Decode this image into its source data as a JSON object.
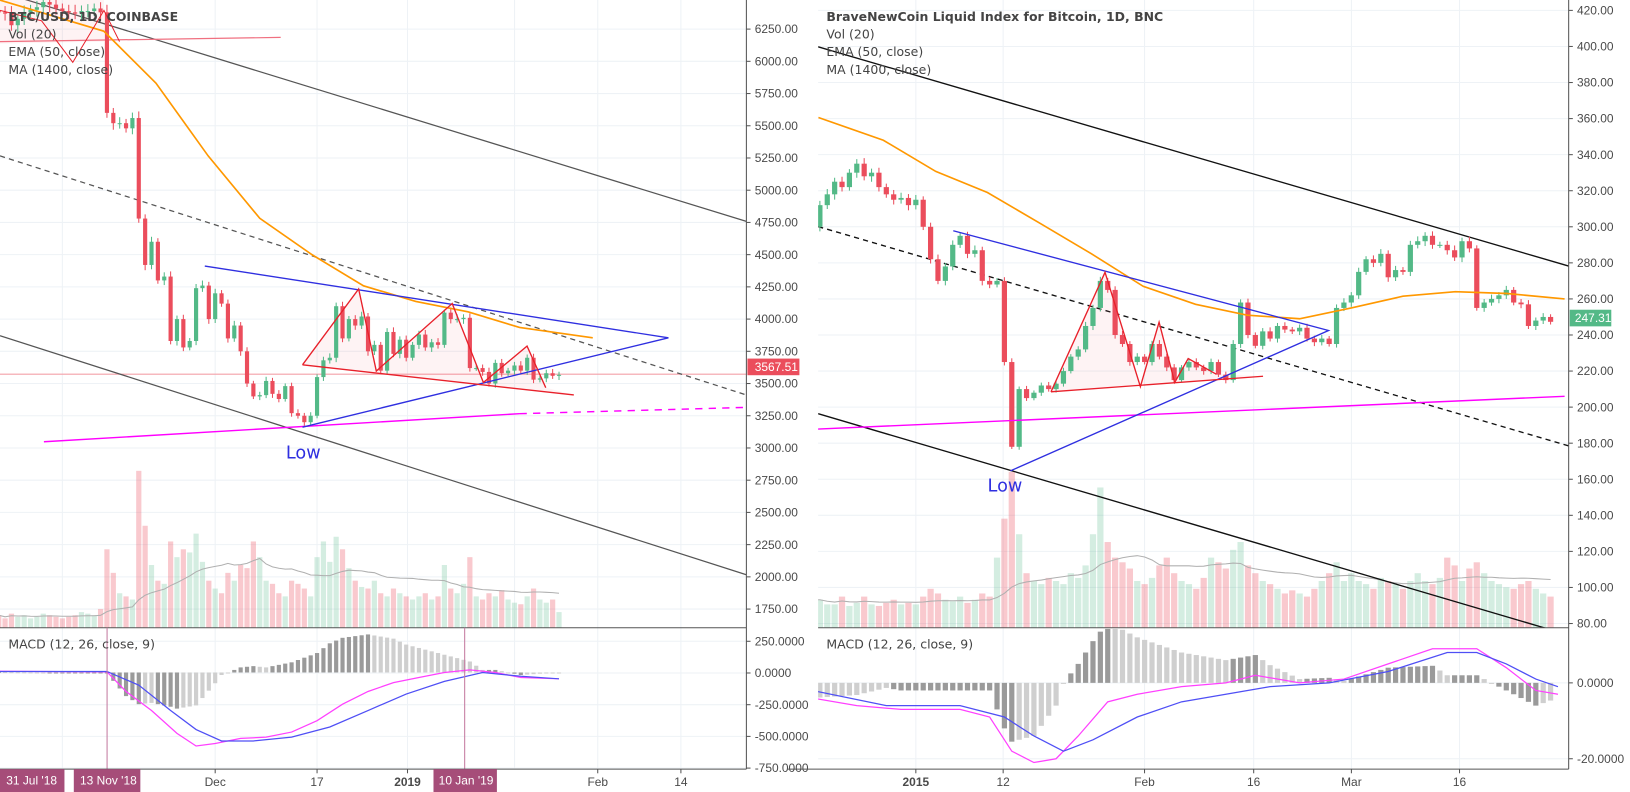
{
  "colors": {
    "up": "#53b987",
    "down": "#eb4d5c",
    "ema": "#ff9800",
    "ma": "#ff00ff",
    "macd": "#ff40ff",
    "signal": "#4f4ff5",
    "tag": "#a64d79",
    "price_tag_left": "#eb4d5c",
    "price_tag_right": "#53b987"
  },
  "left": {
    "legend": {
      "title": "BTC/USD, 1D, COINBASE",
      "vol": "Vol (20)",
      "ema": "EMA (50, close)",
      "ma": "MA (1400, close)",
      "macd": "MACD (12, 26, close, 9)"
    },
    "price_axis": [
      "6250.00",
      "6000.00",
      "5750.00",
      "5500.00",
      "5250.00",
      "5000.00",
      "4750.00",
      "4500.00",
      "4250.00",
      "4000.00",
      "3750.00",
      "3500.00",
      "3250.00",
      "3000.00",
      "2750.00",
      "2500.00",
      "2250.00",
      "2000.00",
      "1750.00"
    ],
    "macd_axis": [
      "250.0000",
      "0.0000",
      "-250.0000",
      "-500.0000",
      "-750.0000"
    ],
    "time_axis": [
      "Dec",
      "17",
      "2019",
      "Feb",
      "14"
    ],
    "time_tags": [
      "31 Jul '18",
      "13 Nov '18",
      "10 Jan '19"
    ],
    "last_price": "3567.51",
    "annotation": "Low"
  },
  "right": {
    "legend": {
      "title": "BraveNewCoin Liquid Index for Bitcoin, 1D, BNC",
      "vol": "Vol (20)",
      "ema": "EMA (50, close)",
      "ma": "MA (1400, close)",
      "macd": "MACD (12, 26, close, 9)"
    },
    "price_axis": [
      "420.00",
      "400.00",
      "380.00",
      "360.00",
      "340.00",
      "320.00",
      "300.00",
      "280.00",
      "260.00",
      "240.00",
      "220.00",
      "200.00",
      "180.00",
      "160.00",
      "140.00",
      "120.00",
      "100.00",
      "80.00"
    ],
    "macd_axis": [
      "0.0000",
      "-20.0000"
    ],
    "time_axis": [
      "2015",
      "12",
      "Feb",
      "16",
      "Mar",
      "16"
    ],
    "last_price": "247.31",
    "annotation": "Low"
  },
  "chart_data": [
    {
      "type": "candlestick",
      "title": "BTC/USD, 1D, COINBASE",
      "start_date": "2018-10-28",
      "ylim": [
        1650,
        6450
      ],
      "close": [
        6380,
        6370,
        6280,
        6330,
        6380,
        6400,
        6420,
        6460,
        6440,
        6410,
        6390,
        6380,
        6370,
        6390,
        6390,
        6410,
        6380,
        5600,
        5520,
        5520,
        5480,
        5560,
        4780,
        4420,
        4600,
        4300,
        4330,
        3830,
        4000,
        3780,
        3830,
        4240,
        4260,
        4000,
        4200,
        4120,
        3850,
        3950,
        3750,
        3500,
        3400,
        3410,
        3520,
        3420,
        3380,
        3480,
        3270,
        3250,
        3200,
        3250,
        3550,
        3680,
        3700,
        4100,
        3850,
        4000,
        3950,
        4020,
        3750,
        3800,
        3600,
        3900,
        3730,
        3840,
        3700,
        3800,
        3880,
        3780,
        3820,
        3800,
        4050,
        4000,
        4000,
        4010,
        3620,
        3620,
        3590,
        3500,
        3660,
        3580,
        3600,
        3640,
        3600,
        3700,
        3530,
        3540,
        3580,
        3560,
        3567.51
      ],
      "volume_relative": [
        8,
        6,
        9,
        7,
        8,
        6,
        7,
        9,
        8,
        7,
        6,
        7,
        8,
        10,
        9,
        8,
        12,
        50,
        35,
        22,
        20,
        18,
        100,
        65,
        40,
        30,
        28,
        55,
        45,
        50,
        48,
        60,
        42,
        30,
        25,
        22,
        35,
        30,
        40,
        38,
        55,
        45,
        30,
        28,
        22,
        20,
        30,
        28,
        25,
        20,
        45,
        55,
        42,
        58,
        50,
        38,
        30,
        26,
        25,
        30,
        22,
        20,
        25,
        22,
        20,
        18,
        20,
        22,
        18,
        20,
        40,
        25,
        22,
        28,
        45,
        20,
        18,
        22,
        20,
        24,
        18,
        16,
        15,
        20,
        25,
        18,
        16,
        18,
        10
      ],
      "ema50": [
        [
          0.2,
          6475
        ],
        [
          16.5,
          6234
        ],
        [
          24.7,
          5831
        ],
        [
          32.9,
          5266
        ],
        [
          41,
          4782
        ],
        [
          49.2,
          4500
        ],
        [
          57.3,
          4258
        ],
        [
          65.5,
          4137
        ],
        [
          73.7,
          4056
        ],
        [
          81.8,
          3935
        ],
        [
          93.3,
          3855
        ]
      ],
      "ma1400": [
        [
          7.1,
          3048
        ],
        [
          81.8,
          3266
        ]
      ],
      "ma1400_projection": [
        [
          81.8,
          3266
        ],
        [
          117.4,
          3315
        ]
      ],
      "macd": [
        [
          0,
          10
        ],
        [
          17,
          5
        ],
        [
          20,
          -150
        ],
        [
          24,
          -300
        ],
        [
          28,
          -480
        ],
        [
          31,
          -580
        ],
        [
          34,
          -560
        ],
        [
          38,
          -520
        ],
        [
          42,
          -510
        ],
        [
          46,
          -470
        ],
        [
          50,
          -380
        ],
        [
          54,
          -250
        ],
        [
          58,
          -150
        ],
        [
          62,
          -80
        ],
        [
          66,
          -40
        ],
        [
          70,
          0
        ],
        [
          74,
          20
        ],
        [
          78,
          0
        ],
        [
          82,
          -40
        ],
        [
          88,
          -50
        ]
      ],
      "signal": [
        [
          0,
          8
        ],
        [
          17,
          8
        ],
        [
          22,
          -100
        ],
        [
          27,
          -300
        ],
        [
          31,
          -450
        ],
        [
          35,
          -540
        ],
        [
          40,
          -540
        ],
        [
          46,
          -510
        ],
        [
          52,
          -430
        ],
        [
          58,
          -300
        ],
        [
          64,
          -170
        ],
        [
          70,
          -70
        ],
        [
          76,
          0
        ],
        [
          82,
          -30
        ],
        [
          88,
          -50
        ]
      ],
      "macd_ylim": [
        -780,
        290
      ]
    },
    {
      "type": "candlestick",
      "title": "BraveNewCoin Liquid Index for Bitcoin, 1D, BNC",
      "start_date": "2014-12-18",
      "ylim": [
        70,
        425
      ],
      "close": [
        300,
        312,
        318,
        325,
        322,
        330,
        335,
        328,
        330,
        322,
        318,
        315,
        316,
        312,
        315,
        300,
        282,
        270,
        278,
        290,
        295,
        285,
        287,
        270,
        268,
        270,
        225,
        178,
        210,
        205,
        208,
        212,
        210,
        213,
        220,
        228,
        232,
        245,
        255,
        270,
        265,
        240,
        235,
        225,
        228,
        225,
        235,
        228,
        222,
        215,
        222,
        225,
        222,
        220,
        225,
        218,
        215,
        235,
        258,
        240,
        234,
        242,
        238,
        245,
        243,
        242,
        244,
        238,
        236,
        238,
        235,
        255,
        258,
        262,
        275,
        282,
        280,
        285,
        272,
        276,
        275,
        290,
        292,
        295,
        290,
        290,
        287,
        283,
        292,
        288,
        255,
        258,
        260,
        262,
        265,
        258,
        257,
        245,
        248,
        250,
        247.31
      ],
      "volume_relative": [
        18,
        18,
        15,
        15,
        20,
        14,
        16,
        20,
        15,
        14,
        16,
        18,
        15,
        16,
        15,
        20,
        25,
        22,
        18,
        17,
        20,
        16,
        18,
        22,
        20,
        45,
        70,
        100,
        60,
        35,
        30,
        28,
        32,
        30,
        28,
        35,
        32,
        40,
        60,
        90,
        55,
        45,
        42,
        38,
        30,
        28,
        32,
        40,
        45,
        35,
        30,
        28,
        25,
        32,
        45,
        42,
        38,
        50,
        55,
        40,
        35,
        30,
        28,
        25,
        22,
        24,
        22,
        20,
        25,
        30,
        35,
        42,
        30,
        35,
        30,
        28,
        25,
        32,
        30,
        28,
        25,
        30,
        35,
        30,
        28,
        32,
        45,
        40,
        30,
        38,
        42,
        35,
        30,
        28,
        26,
        25,
        28,
        30,
        25,
        22,
        20
      ],
      "ema50": [
        [
          0.8,
          360.6
        ],
        [
          9.6,
          348
        ],
        [
          16.7,
          330.7
        ],
        [
          23.7,
          319
        ],
        [
          30.8,
          302
        ],
        [
          37.8,
          285
        ],
        [
          44.8,
          267
        ],
        [
          51.9,
          257
        ],
        [
          58.9,
          251
        ],
        [
          66,
          249
        ],
        [
          73,
          255
        ],
        [
          80,
          261.5
        ],
        [
          87.1,
          264
        ],
        [
          94.1,
          263
        ],
        [
          101.9,
          260
        ]
      ],
      "ma1400": [
        [
          0,
          187.7
        ],
        [
          101.9,
          206
        ]
      ],
      "macd": [
        [
          0,
          -4
        ],
        [
          6,
          -6
        ],
        [
          12,
          -7
        ],
        [
          20,
          -7
        ],
        [
          24,
          -9
        ],
        [
          27,
          -18
        ],
        [
          30,
          -21
        ],
        [
          33,
          -20
        ],
        [
          36,
          -14
        ],
        [
          40,
          -5
        ],
        [
          44,
          -3
        ],
        [
          50,
          -1
        ],
        [
          56,
          0
        ],
        [
          60,
          2
        ],
        [
          66,
          0
        ],
        [
          72,
          1
        ],
        [
          78,
          5
        ],
        [
          84,
          9
        ],
        [
          90,
          9
        ],
        [
          94,
          4
        ],
        [
          98,
          -2
        ],
        [
          101,
          -3
        ]
      ],
      "signal": [
        [
          0,
          -2
        ],
        [
          10,
          -6
        ],
        [
          20,
          -6
        ],
        [
          26,
          -9
        ],
        [
          30,
          -14
        ],
        [
          34,
          -18
        ],
        [
          38,
          -15
        ],
        [
          44,
          -9
        ],
        [
          50,
          -5
        ],
        [
          56,
          -3
        ],
        [
          62,
          -1
        ],
        [
          70,
          0
        ],
        [
          78,
          3
        ],
        [
          86,
          8
        ],
        [
          90,
          8
        ],
        [
          94,
          5
        ],
        [
          98,
          1
        ],
        [
          101,
          -1
        ]
      ],
      "macd_ylim": [
        -26,
        14
      ]
    }
  ]
}
